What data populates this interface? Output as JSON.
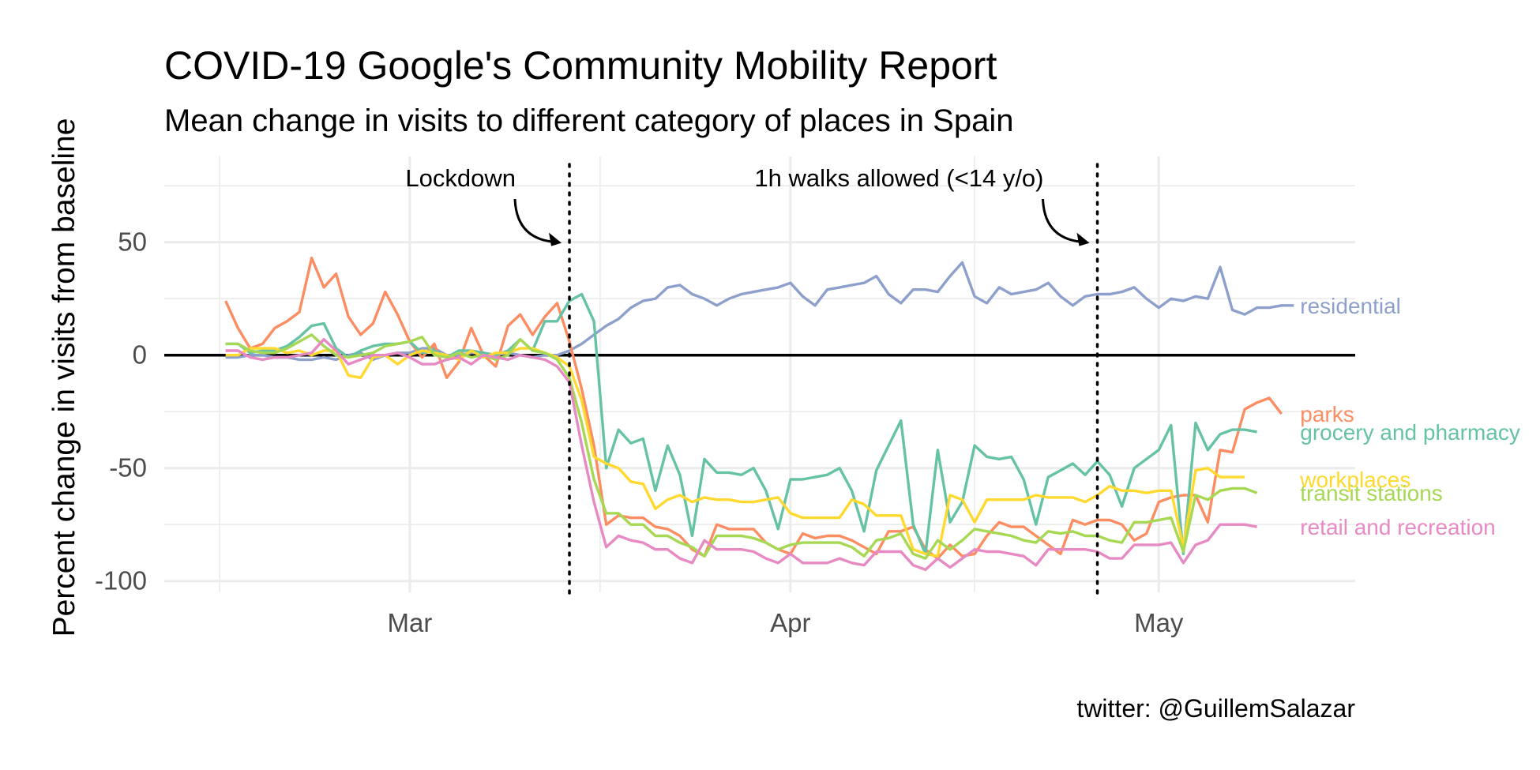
{
  "chart_data": {
    "type": "line",
    "title": "COVID-19 Google's Community Mobility Report",
    "subtitle": "Mean change in visits to different category of places in Spain",
    "ylabel": "Percent change in visits from baseline",
    "xlabel": "",
    "caption": "twitter: @GuillemSalazar",
    "ylim": [
      -105,
      88
    ],
    "xlim": [
      "2020-02-10",
      "2020-05-17"
    ],
    "y_ticks": [
      50,
      0,
      -50,
      -100
    ],
    "y_tick_labels": [
      "50",
      "0",
      "-50",
      "-100"
    ],
    "x_ticks": [
      "2020-03-01",
      "2020-04-01",
      "2020-05-01"
    ],
    "x_tick_labels": [
      "Mar",
      "Apr",
      "May"
    ],
    "grid": true,
    "start_date": "2020-02-15",
    "events": [
      {
        "date": "2020-03-14",
        "label": "Lockdown"
      },
      {
        "date": "2020-04-26",
        "label": "1h walks allowed (<14 y/o)"
      }
    ],
    "series": [
      {
        "name": "residential",
        "color": "#8DA0CB",
        "values": [
          -1,
          -1,
          0,
          0,
          -1,
          -1,
          -2,
          -2,
          -1,
          -2,
          0,
          1,
          -2,
          0,
          1,
          1,
          3,
          3,
          0,
          0,
          1,
          1,
          0,
          1,
          0,
          -1,
          0,
          0,
          2,
          5,
          9,
          13,
          16,
          21,
          24,
          25,
          30,
          31,
          27,
          25,
          22,
          25,
          27,
          28,
          29,
          30,
          32,
          26,
          22,
          29,
          30,
          31,
          32,
          35,
          27,
          23,
          29,
          29,
          28,
          35,
          41,
          26,
          23,
          30,
          27,
          28,
          29,
          32,
          26,
          22,
          26,
          27,
          27,
          28,
          30,
          25,
          21,
          25,
          24,
          26,
          25,
          39,
          20,
          18,
          21,
          21,
          22,
          22
        ]
      },
      {
        "name": "parks",
        "color": "#FC8D62",
        "values": [
          24,
          12,
          3,
          5,
          12,
          15,
          19,
          43,
          30,
          36,
          17,
          9,
          14,
          28,
          18,
          6,
          -1,
          5,
          -10,
          -3,
          12,
          0,
          -5,
          13,
          18,
          9,
          17,
          23,
          6,
          -15,
          -40,
          -75,
          -71,
          -72,
          -72,
          -76,
          -77,
          -80,
          -86,
          -89,
          -75,
          -77,
          -77,
          -77,
          -83,
          -86,
          -88,
          -79,
          -81,
          -80,
          -80,
          -82,
          -85,
          -88,
          -78,
          -78,
          -76,
          -86,
          -90,
          -84,
          -89,
          -88,
          -80,
          -74,
          -76,
          -76,
          -80,
          -84,
          -88,
          -73,
          -75,
          -73,
          -73,
          -75,
          -82,
          -79,
          -65,
          -63,
          -62,
          -62,
          -74,
          -42,
          -43,
          -24,
          -21,
          -19,
          -26
        ]
      },
      {
        "name": "grocery and pharmacy",
        "color": "#66C2A5",
        "values": [
          5,
          5,
          1,
          2,
          2,
          4,
          8,
          13,
          14,
          3,
          -1,
          2,
          4,
          5,
          5,
          6,
          1,
          2,
          -1,
          2,
          2,
          1,
          0,
          2,
          7,
          2,
          15,
          15,
          24,
          27,
          15,
          -50,
          -33,
          -39,
          -37,
          -60,
          -40,
          -53,
          -80,
          -46,
          -52,
          -52,
          -53,
          -50,
          -60,
          -77,
          -55,
          -55,
          -54,
          -53,
          -50,
          -60,
          -78,
          -51,
          -40,
          -29,
          -75,
          -88,
          -42,
          -74,
          -65,
          -40,
          -45,
          -46,
          -45,
          -55,
          -75,
          -54,
          -51,
          -48,
          -53,
          -47,
          -53,
          -67,
          -50,
          -46,
          -42,
          -31,
          -88,
          -30,
          -42,
          -35,
          -33,
          -33,
          -34
        ]
      },
      {
        "name": "workplaces",
        "color": "#FFD92F",
        "values": [
          0,
          0,
          3,
          3,
          3,
          1,
          2,
          0,
          2,
          2,
          -9,
          -10,
          -1,
          0,
          -4,
          0,
          2,
          1,
          0,
          -2,
          2,
          -1,
          1,
          1,
          3,
          3,
          1,
          -1,
          -5,
          -20,
          -45,
          -48,
          -50,
          -56,
          -57,
          -68,
          -64,
          -62,
          -65,
          -63,
          -64,
          -64,
          -65,
          -65,
          -64,
          -63,
          -70,
          -72,
          -72,
          -72,
          -72,
          -64,
          -66,
          -71,
          -71,
          -71,
          -86,
          -88,
          -89,
          -62,
          -64,
          -74,
          -64,
          -64,
          -64,
          -64,
          -62,
          -63,
          -63,
          -63,
          -65,
          -62,
          -58,
          -60,
          -60,
          -61,
          -60,
          -60,
          -85,
          -51,
          -50,
          -54,
          -54,
          -54
        ]
      },
      {
        "name": "transit stations",
        "color": "#A6D854",
        "values": [
          5,
          5,
          2,
          1,
          1,
          3,
          6,
          9,
          4,
          0,
          -1,
          0,
          1,
          4,
          5,
          6,
          8,
          0,
          -1,
          1,
          -1,
          0,
          -2,
          0,
          7,
          2,
          1,
          -2,
          -10,
          -30,
          -55,
          -70,
          -70,
          -75,
          -75,
          -80,
          -80,
          -83,
          -85,
          -89,
          -80,
          -80,
          -80,
          -81,
          -83,
          -86,
          -84,
          -83,
          -83,
          -83,
          -83,
          -85,
          -89,
          -82,
          -81,
          -79,
          -88,
          -90,
          -82,
          -86,
          -82,
          -77,
          -78,
          -79,
          -80,
          -82,
          -83,
          -78,
          -79,
          -78,
          -80,
          -80,
          -82,
          -83,
          -74,
          -74,
          -73,
          -72,
          -87,
          -62,
          -64,
          -60,
          -59,
          -59,
          -61
        ]
      },
      {
        "name": "retail and recreation",
        "color": "#E78AC3",
        "values": [
          2,
          2,
          -1,
          -2,
          -1,
          -1,
          0,
          1,
          7,
          2,
          -4,
          -2,
          0,
          0,
          1,
          -1,
          -4,
          -4,
          -2,
          -1,
          -4,
          0,
          -1,
          -2,
          0,
          -1,
          -2,
          -5,
          -12,
          -40,
          -65,
          -85,
          -80,
          -82,
          -83,
          -86,
          -86,
          -90,
          -92,
          -82,
          -86,
          -86,
          -86,
          -87,
          -90,
          -92,
          -88,
          -92,
          -92,
          -92,
          -90,
          -92,
          -93,
          -87,
          -87,
          -87,
          -93,
          -95,
          -90,
          -94,
          -90,
          -86,
          -87,
          -87,
          -88,
          -89,
          -93,
          -86,
          -86,
          -86,
          -86,
          -87,
          -90,
          -90,
          -84,
          -84,
          -84,
          -83,
          -92,
          -84,
          -82,
          -75,
          -75,
          -75,
          -76
        ]
      }
    ],
    "end_labels": [
      {
        "name": "residential",
        "text": "residential",
        "y": 22
      },
      {
        "name": "parks",
        "text": "parks",
        "y": -26
      },
      {
        "name": "grocery and pharmacy",
        "text": "grocery and pharmacy",
        "y": -34
      },
      {
        "name": "workplaces",
        "text": "workplaces",
        "y": -55
      },
      {
        "name": "transit stations",
        "text": "transit stations",
        "y": -61
      },
      {
        "name": "retail and recreation",
        "text": "retail and recreation",
        "y": -76
      }
    ]
  }
}
